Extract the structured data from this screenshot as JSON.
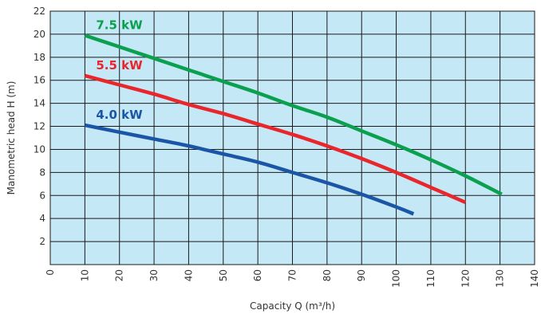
{
  "chart_data": {
    "type": "line",
    "title": "",
    "xlabel": "Capacity Q (m³/h)",
    "ylabel": "Manometric head H (m)",
    "xlim": [
      0,
      140
    ],
    "ylim": [
      0,
      22
    ],
    "x_ticks": [
      "0",
      "10",
      "20",
      "30",
      "40",
      "50",
      "60",
      "70",
      "80",
      "90",
      "100",
      "110",
      "120",
      "130",
      "140"
    ],
    "y_ticks": [
      "2",
      "4",
      "6",
      "8",
      "10",
      "12",
      "14",
      "16",
      "18",
      "20",
      "22"
    ],
    "grid": true,
    "plot_background": "#c5e8f7",
    "series": [
      {
        "name": "7.5 kW",
        "color": "#0aa04e",
        "x": [
          10,
          20,
          30,
          40,
          50,
          60,
          70,
          80,
          90,
          100,
          110,
          120,
          130.5
        ],
        "y": [
          19.9,
          18.9,
          17.9,
          16.9,
          15.9,
          14.9,
          13.8,
          12.8,
          11.6,
          10.4,
          9.1,
          7.7,
          6.1
        ]
      },
      {
        "name": "5.5 kW",
        "color": "#e8262c",
        "x": [
          10,
          20,
          30,
          40,
          50,
          60,
          70,
          80,
          90,
          100,
          110,
          120
        ],
        "y": [
          16.4,
          15.6,
          14.8,
          13.9,
          13.1,
          12.2,
          11.3,
          10.3,
          9.2,
          8.0,
          6.7,
          5.4
        ]
      },
      {
        "name": "4.0 kW",
        "color": "#1b56a6",
        "x": [
          10,
          20,
          30,
          40,
          50,
          60,
          70,
          80,
          90,
          100,
          105
        ],
        "y": [
          12.1,
          11.5,
          10.9,
          10.3,
          9.6,
          8.9,
          8.0,
          7.1,
          6.1,
          5.0,
          4.4
        ]
      }
    ]
  }
}
